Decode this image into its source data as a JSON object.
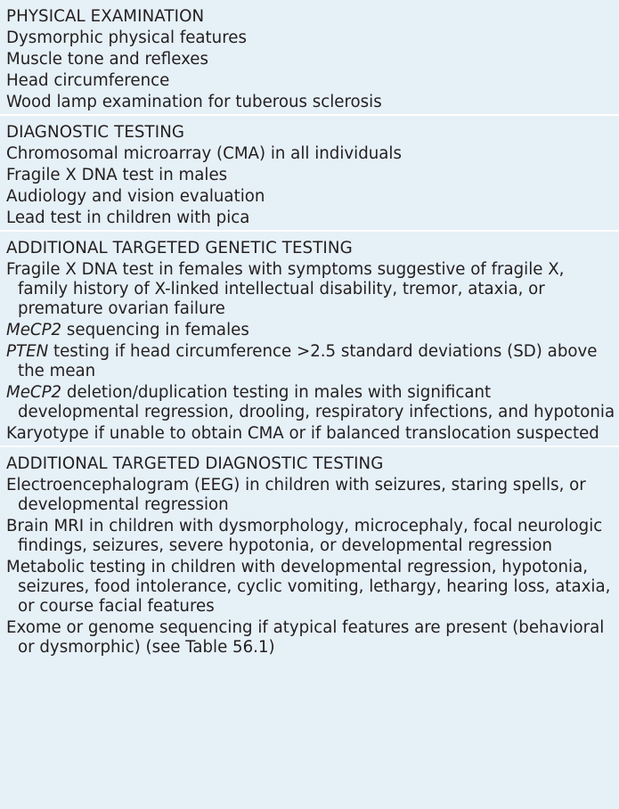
{
  "sections": [
    {
      "title": "PHYSICAL EXAMINATION",
      "items": [
        {
          "text": "Dysmorphic physical features"
        },
        {
          "text": "Muscle tone and reflexes"
        },
        {
          "text": "Head circumference"
        },
        {
          "text": "Wood lamp examination for tuberous sclerosis"
        }
      ]
    },
    {
      "title": "DIAGNOSTIC TESTING",
      "items": [
        {
          "text": "Chromosomal microarray (CMA) in all individuals"
        },
        {
          "text": "Fragile X DNA test in males"
        },
        {
          "text": "Audiology and vision evaluation"
        },
        {
          "text": "Lead test in children with pica"
        }
      ]
    },
    {
      "title": "ADDITIONAL TARGETED GENETIC TESTING",
      "items": [
        {
          "text": "Fragile X DNA test in females with symptoms suggestive of fragile X, family history of X-linked intellectual disability, tremor, ataxia, or premature ovarian failure"
        },
        {
          "gene": "MeCP2",
          "text": " sequencing in females"
        },
        {
          "gene": "PTEN",
          "text": " testing if head circumference >2.5 standard deviations (SD) above the mean"
        },
        {
          "gene": "MeCP2",
          "text": " deletion/duplication testing in males with significant developmental regression, drooling, respiratory infections, and hypotonia"
        },
        {
          "text": "Karyotype if unable to obtain CMA or if balanced translocation suspected"
        }
      ]
    },
    {
      "title": "ADDITIONAL TARGETED DIAGNOSTIC TESTING",
      "items": [
        {
          "text": "Electroencephalogram (EEG) in children with seizures, staring spells, or developmental regression"
        },
        {
          "text": "Brain MRI in children with dysmorphology, microcephaly, focal neurologic findings, seizures, severe hypotonia, or developmental regression"
        },
        {
          "text": "Metabolic testing in children with developmental regression, hypotonia, seizures, food intolerance, cyclic vomiting, lethargy, hearing loss, ataxia, or course facial features"
        },
        {
          "text": "Exome or genome sequencing if atypical features are present (behavioral or dysmorphic) (see Table 56.1)"
        }
      ]
    }
  ]
}
